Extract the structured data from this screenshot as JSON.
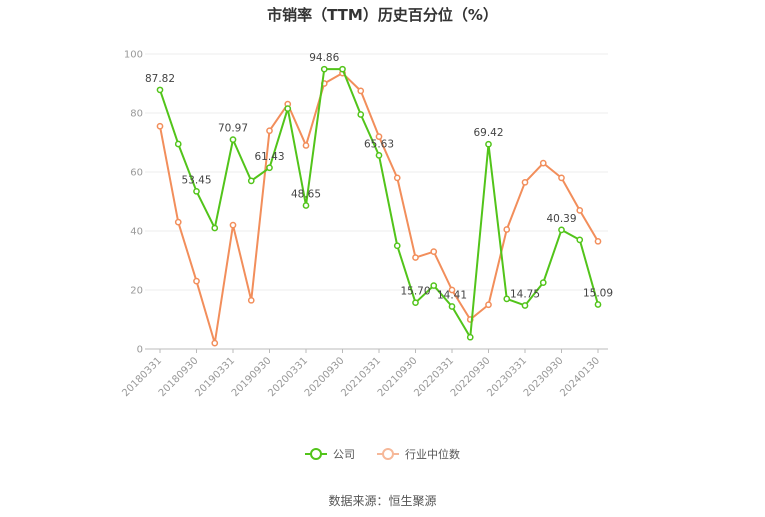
{
  "chart_data": {
    "type": "line",
    "title": "市销率（TTM）历史百分位（%）",
    "xlabel": "",
    "ylabel": "",
    "ylim": [
      0,
      100
    ],
    "yticks": [
      0,
      20,
      40,
      60,
      80,
      100
    ],
    "x": [
      "20180331",
      "20180630",
      "20180930",
      "20181231",
      "20190331",
      "20190630",
      "20190930",
      "20191231",
      "20200331",
      "20200630",
      "20200930",
      "20201231",
      "20210331",
      "20210630",
      "20210930",
      "20211231",
      "20220331",
      "20220630",
      "20220930",
      "20221231",
      "20230331",
      "20230630",
      "20230930",
      "20231231",
      "20240130"
    ],
    "x_tick_labels": [
      "20180331",
      "20180930",
      "20190331",
      "20190930",
      "20200331",
      "20200930",
      "20210331",
      "20210930",
      "20220331",
      "20220930",
      "20230331",
      "20230930",
      "20240130"
    ],
    "series": [
      {
        "name": "公司",
        "color": "#52c41a",
        "values": [
          87.82,
          69.5,
          53.45,
          41.0,
          70.97,
          57.0,
          61.43,
          81.5,
          48.65,
          94.86,
          94.86,
          79.5,
          65.63,
          35.0,
          15.7,
          21.5,
          14.41,
          4.0,
          69.42,
          17.0,
          14.75,
          22.5,
          40.39,
          37.0,
          15.09
        ],
        "labels": {
          "0": "87.82",
          "2": "53.45",
          "4": "70.97",
          "6": "61.43",
          "8": "48.65",
          "9": "94.86",
          "12": "65.63",
          "14": "15.70",
          "16": "14.41",
          "18": "69.42",
          "20": "14.75",
          "22": "40.39",
          "24": "15.09"
        }
      },
      {
        "name": "行业中位数",
        "color": "#f28e5b",
        "values": [
          75.5,
          43.0,
          23.0,
          2.0,
          42.0,
          16.5,
          74.0,
          83.0,
          69.0,
          90.0,
          93.5,
          87.5,
          72.0,
          58.0,
          31.0,
          33.0,
          20.0,
          10.0,
          15.0,
          40.5,
          56.5,
          63.0,
          58.0,
          47.0,
          36.5
        ]
      }
    ],
    "grid": true,
    "legend_position": "bottom"
  },
  "source": "数据来源：恒生聚源"
}
